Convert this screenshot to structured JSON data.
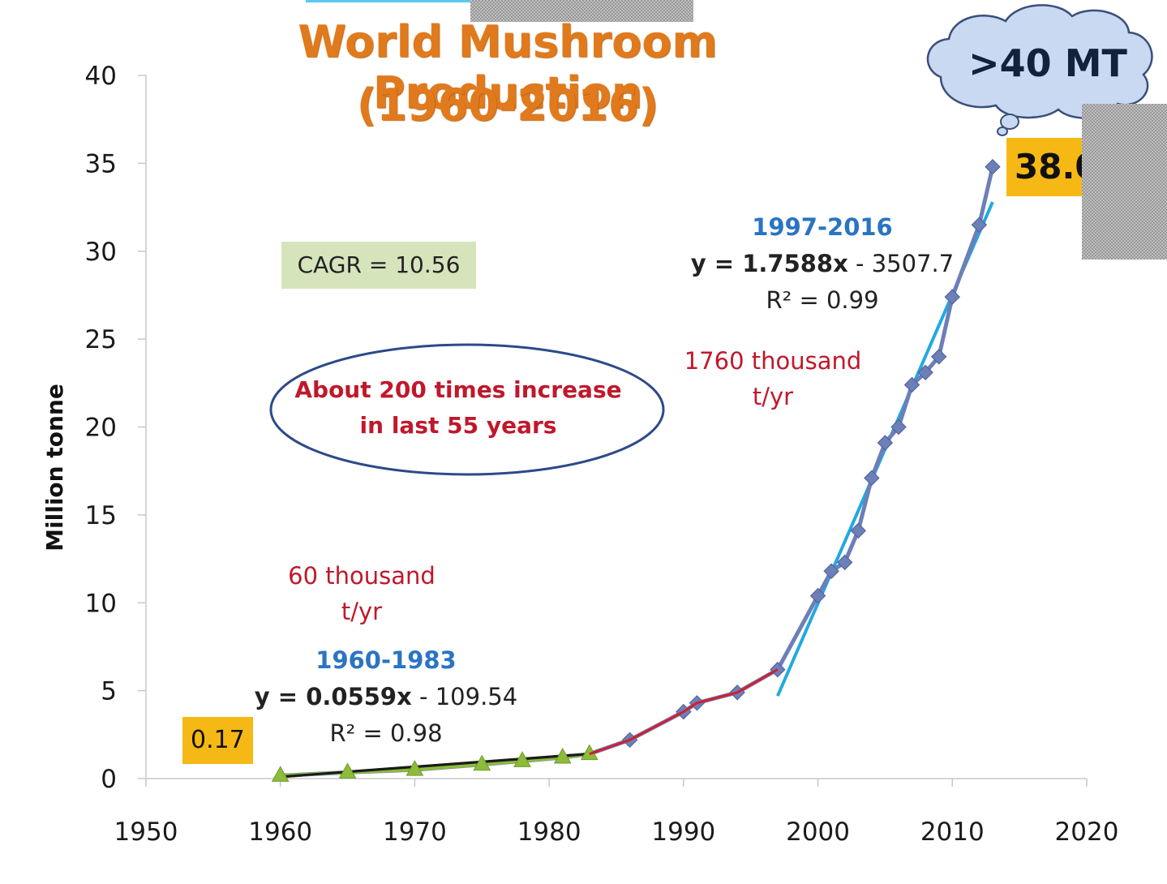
{
  "colors": {
    "title": "#e07a1c",
    "series_main": "#6c7fb8",
    "fit_1960_1983": "#1a1a1a",
    "fit_mid": "#d11f2e",
    "fit_1997_2016": "#22a9e0",
    "green_markers": "#8dbb3a",
    "label_highlight": "#f6b814",
    "cagr_box": "#d6e4bc",
    "cloud": "#c9d9f2",
    "ellipse": "#2c4a8a"
  },
  "chart_data": {
    "type": "line",
    "title": "World Mushroom Production",
    "subtitle": "(1960-2016)",
    "xlabel": "",
    "ylabel": "Million tonne",
    "xlim": [
      1950,
      2020
    ],
    "ylim": [
      0,
      40
    ],
    "x_ticks": [
      "1950",
      "1960",
      "1970",
      "1980",
      "1990",
      "2000",
      "2010",
      "2020"
    ],
    "y_ticks": [
      "0",
      "5",
      "10",
      "15",
      "20",
      "25",
      "30",
      "35",
      "40"
    ],
    "grid": false,
    "series": [
      {
        "x": [
          1960,
          1965,
          1970,
          1975,
          1978,
          1981,
          1983,
          1986,
          1990,
          1991,
          1994,
          1997,
          2000,
          2001,
          2002,
          2003,
          2004,
          2005,
          2006,
          2007,
          2008,
          2009,
          2010,
          2012,
          2013
        ],
        "y": [
          0.17,
          0.35,
          0.5,
          0.8,
          1.0,
          1.2,
          1.4,
          2.2,
          3.8,
          4.3,
          4.9,
          6.2,
          10.4,
          11.8,
          12.3,
          14.1,
          17.1,
          19.1,
          20.0,
          22.4,
          23.1,
          24.0,
          27.4,
          31.5,
          34.8
        ]
      }
    ],
    "trendlines": [
      {
        "x": [
          1960,
          1983
        ],
        "y": [
          0.1,
          1.4
        ]
      },
      {
        "x": [
          1983,
          1986,
          1990,
          1991,
          1994,
          1997
        ],
        "y": [
          1.4,
          2.2,
          3.8,
          4.3,
          4.9,
          6.2
        ]
      },
      {
        "x": [
          1997,
          2013
        ],
        "y": [
          4.7,
          32.8
        ]
      }
    ],
    "annotations": {
      "cagr": "CAGR = 10.56",
      "ellipse_line1": "About 200 times increase",
      "ellipse_line2": "in  last 55 years",
      "rate_high_line1": "1760 thousand",
      "rate_high_line2": "t/yr",
      "rate_low_line1": "60 thousand",
      "rate_low_line2": "t/yr",
      "fit_high_period": "1997-2016",
      "fit_high_eq_bold": "y = 1.7588x",
      "fit_high_eq_rest": " - 3507.7",
      "fit_high_r2": "R² = 0.99",
      "fit_low_period": "1960-1983",
      "fit_low_eq_bold": "y = 0.0559x",
      "fit_low_eq_rest": " - 109.54",
      "fit_low_r2": "R² = 0.98",
      "start_value": "0.17",
      "end_value": "38.0",
      "cloud": ">40 MT"
    }
  }
}
